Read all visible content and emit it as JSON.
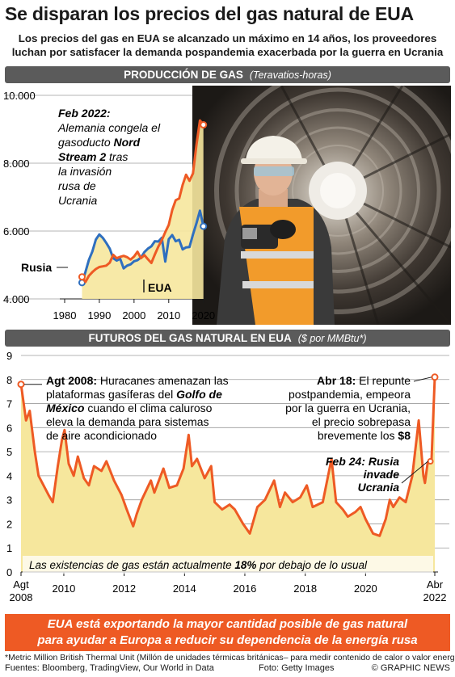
{
  "header": {
    "title": "Se disparan los precios del gas natural de EUA",
    "subtitle_line1": "Los precios del gas en EUA se alcanzado un máximo en 14 años, los proveedores",
    "subtitle_line2": "luchan por satisfacer la demanda pospandemia exacerbada por la guerra en Ucrania"
  },
  "colors": {
    "usa": "#ee5a24",
    "russia": "#2f6fbf",
    "area_fill": "#f6e79d",
    "bar": "#5b5b5b"
  },
  "photo": {
    "subject": "worker-with-pipe-photo"
  },
  "chart_data": [
    {
      "type": "line",
      "title": "PRODUCCIÓN DE GAS",
      "unit": "(Teravatios-horas)",
      "ylim": [
        4000,
        10000
      ],
      "y_ticks": [
        "4.000",
        "6.000",
        "8.000",
        "10.000"
      ],
      "y_tick_values": [
        4000,
        6000,
        8000,
        10000
      ],
      "xlim": [
        1980,
        2021
      ],
      "x_ticks": [
        "1980",
        "1990",
        "2000",
        "2010",
        "2020"
      ],
      "x_tick_values": [
        1980,
        1990,
        2000,
        2010,
        2020
      ],
      "series": [
        {
          "name": "Rusia",
          "color": "#2f6fbf",
          "x": [
            1985,
            1986,
            1987,
            1988,
            1989,
            1990,
            1991,
            1992,
            1993,
            1994,
            1995,
            1996,
            1997,
            1998,
            1999,
            2000,
            2001,
            2002,
            2003,
            2004,
            2005,
            2006,
            2007,
            2008,
            2009,
            2010,
            2011,
            2012,
            2013,
            2014,
            2015,
            2016,
            2017,
            2018,
            2019,
            2020
          ],
          "values": [
            4480,
            4800,
            5150,
            5400,
            5750,
            5900,
            5800,
            5650,
            5480,
            5200,
            5130,
            5180,
            4900,
            4980,
            5020,
            5110,
            5140,
            5220,
            5380,
            5480,
            5550,
            5700,
            5690,
            5800,
            5100,
            5760,
            5880,
            5700,
            5740,
            5460,
            5520,
            5530,
            5900,
            6230,
            6600,
            6140
          ]
        },
        {
          "name": "EUA",
          "color": "#ee5a24",
          "x": [
            1985,
            1986,
            1987,
            1988,
            1989,
            1990,
            1991,
            1992,
            1993,
            1994,
            1995,
            1996,
            1997,
            1998,
            1999,
            2000,
            2001,
            2002,
            2003,
            2004,
            2005,
            2006,
            2007,
            2008,
            2009,
            2010,
            2011,
            2012,
            2013,
            2014,
            2015,
            2016,
            2017,
            2018,
            2019,
            2020
          ],
          "values": [
            4650,
            4500,
            4680,
            4790,
            4880,
            4940,
            4960,
            4980,
            5070,
            5300,
            5200,
            5240,
            5270,
            5230,
            5160,
            5250,
            5390,
            5200,
            5290,
            5170,
            5060,
            5310,
            5540,
            5730,
            5970,
            6180,
            6620,
            6910,
            6960,
            7360,
            7660,
            7480,
            7700,
            8540,
            9260,
            9130
          ]
        }
      ],
      "labels": {
        "russia": "Rusia",
        "usa": "EUA"
      },
      "annotation": {
        "head": "Feb 2022:",
        "line1": "Alemania congela el",
        "line2_plain": "gasoducto ",
        "line2_bold": "Nord",
        "line3_bold": "Stream 2",
        "line3_italic": " tras",
        "line4": "la invasión",
        "line5": "rusa de",
        "line6": "Ucrania"
      }
    },
    {
      "type": "area",
      "title": "FUTUROS DEL GAS NATURAL EN EUA",
      "unit": "($ por MMBtu*)",
      "ylim": [
        0,
        9
      ],
      "y_ticks": [
        "0",
        "1",
        "2",
        "3",
        "4",
        "5",
        "6",
        "7",
        "8",
        "9"
      ],
      "y_tick_values": [
        0,
        1,
        2,
        3,
        4,
        5,
        6,
        7,
        8,
        9
      ],
      "xlim": [
        "2008-08-01",
        "2022-04-18"
      ],
      "x_ticks": [
        "2010",
        "2012",
        "2014",
        "2016",
        "2018",
        "2020"
      ],
      "x_tick_dates": [
        "2010-01-01",
        "2012-01-01",
        "2014-01-01",
        "2016-01-01",
        "2018-01-01",
        "2020-01-01"
      ],
      "x_end_labels": {
        "start_line1": "Agt",
        "start_line2": "2008",
        "end_line1": "Abr",
        "end_line2": "2022"
      },
      "color": "#ee5a24",
      "fill": "#f6e79d",
      "points": [
        [
          "2008-08-01",
          7.8
        ],
        [
          "2008-10-01",
          6.3
        ],
        [
          "2008-11-15",
          6.7
        ],
        [
          "2009-01-15",
          5.0
        ],
        [
          "2009-03-01",
          4.0
        ],
        [
          "2009-05-01",
          3.6
        ],
        [
          "2009-07-01",
          3.2
        ],
        [
          "2009-08-20",
          2.9
        ],
        [
          "2009-10-20",
          4.4
        ],
        [
          "2009-12-10",
          5.5
        ],
        [
          "2010-01-10",
          5.9
        ],
        [
          "2010-03-01",
          4.5
        ],
        [
          "2010-05-01",
          4.0
        ],
        [
          "2010-06-20",
          4.8
        ],
        [
          "2010-09-01",
          3.9
        ],
        [
          "2010-11-01",
          3.6
        ],
        [
          "2011-01-01",
          4.4
        ],
        [
          "2011-04-01",
          4.2
        ],
        [
          "2011-06-01",
          4.6
        ],
        [
          "2011-09-01",
          3.8
        ],
        [
          "2011-12-01",
          3.2
        ],
        [
          "2012-02-01",
          2.6
        ],
        [
          "2012-04-20",
          1.9
        ],
        [
          "2012-06-01",
          2.4
        ],
        [
          "2012-08-01",
          3.0
        ],
        [
          "2012-11-20",
          3.8
        ],
        [
          "2013-01-01",
          3.3
        ],
        [
          "2013-04-20",
          4.3
        ],
        [
          "2013-07-01",
          3.5
        ],
        [
          "2013-10-01",
          3.6
        ],
        [
          "2013-12-20",
          4.3
        ],
        [
          "2014-02-20",
          5.7
        ],
        [
          "2014-04-01",
          4.4
        ],
        [
          "2014-06-01",
          4.7
        ],
        [
          "2014-09-01",
          3.9
        ],
        [
          "2014-11-20",
          4.4
        ],
        [
          "2015-01-01",
          2.9
        ],
        [
          "2015-04-01",
          2.6
        ],
        [
          "2015-07-01",
          2.8
        ],
        [
          "2015-09-01",
          2.6
        ],
        [
          "2015-12-10",
          2.0
        ],
        [
          "2016-03-01",
          1.6
        ],
        [
          "2016-06-01",
          2.7
        ],
        [
          "2016-09-01",
          3.0
        ],
        [
          "2016-12-20",
          3.8
        ],
        [
          "2017-03-01",
          2.7
        ],
        [
          "2017-05-01",
          3.3
        ],
        [
          "2017-08-01",
          2.9
        ],
        [
          "2017-11-01",
          3.1
        ],
        [
          "2018-01-20",
          3.6
        ],
        [
          "2018-04-01",
          2.7
        ],
        [
          "2018-08-01",
          2.9
        ],
        [
          "2018-11-15",
          4.7
        ],
        [
          "2019-01-10",
          2.9
        ],
        [
          "2019-04-01",
          2.6
        ],
        [
          "2019-06-01",
          2.3
        ],
        [
          "2019-09-01",
          2.5
        ],
        [
          "2019-11-01",
          2.7
        ],
        [
          "2020-01-01",
          2.2
        ],
        [
          "2020-04-01",
          1.6
        ],
        [
          "2020-06-20",
          1.5
        ],
        [
          "2020-09-01",
          2.2
        ],
        [
          "2020-10-20",
          3.0
        ],
        [
          "2020-12-01",
          2.7
        ],
        [
          "2021-02-15",
          3.1
        ],
        [
          "2021-05-01",
          2.9
        ],
        [
          "2021-07-20",
          4.0
        ],
        [
          "2021-10-05",
          6.3
        ],
        [
          "2021-12-01",
          4.0
        ],
        [
          "2021-12-20",
          3.7
        ],
        [
          "2022-01-20",
          4.5
        ],
        [
          "2022-02-24",
          4.6
        ],
        [
          "2022-03-10",
          4.7
        ],
        [
          "2022-04-18",
          8.1
        ]
      ],
      "banner_pre": "Las existencias de gas están actualmente ",
      "banner_bold": "18%",
      "banner_post": " por debajo de lo usual",
      "annot_left": {
        "head": "Agt 2008:",
        "line1_rest": " Huracanes amenazan las",
        "line2": "plataformas gasíferas del ",
        "line2_bold": "Golfo de",
        "line3_bold": "México",
        "line3_rest": " cuando el clima caluroso",
        "line4": "eleva la demanda para sistemas",
        "line5": "de aire acondicionado"
      },
      "annot_right": {
        "head": "Abr 18:",
        "line1_rest": " El repunte",
        "line2": "postpandemia, empeora",
        "line3": "por la guerra en Ucrania,",
        "line4": "el precio sobrepasa",
        "line5": "brevemente los ",
        "line5_bold": "$8"
      },
      "annot_feb": {
        "line1": "Feb 24: Rusia",
        "line2": "invade",
        "line3": "Ucrania"
      }
    }
  ],
  "footer": {
    "message_line1": "EUA está exportando la mayor cantidad posible de gas natural",
    "message_line2": "para ayudar a Europa a reducir su dependencia de la energía rusa",
    "note": "*Metric Million British Thermal Unit (Millón de unidades térmicas británicas– para medir contenido de calor o valor energético",
    "sources": "Fuentes: Bloomberg, TradingView, Our World in Data",
    "photo_credit": "Foto: Getty Images",
    "brand": "© GRAPHIC NEWS"
  }
}
